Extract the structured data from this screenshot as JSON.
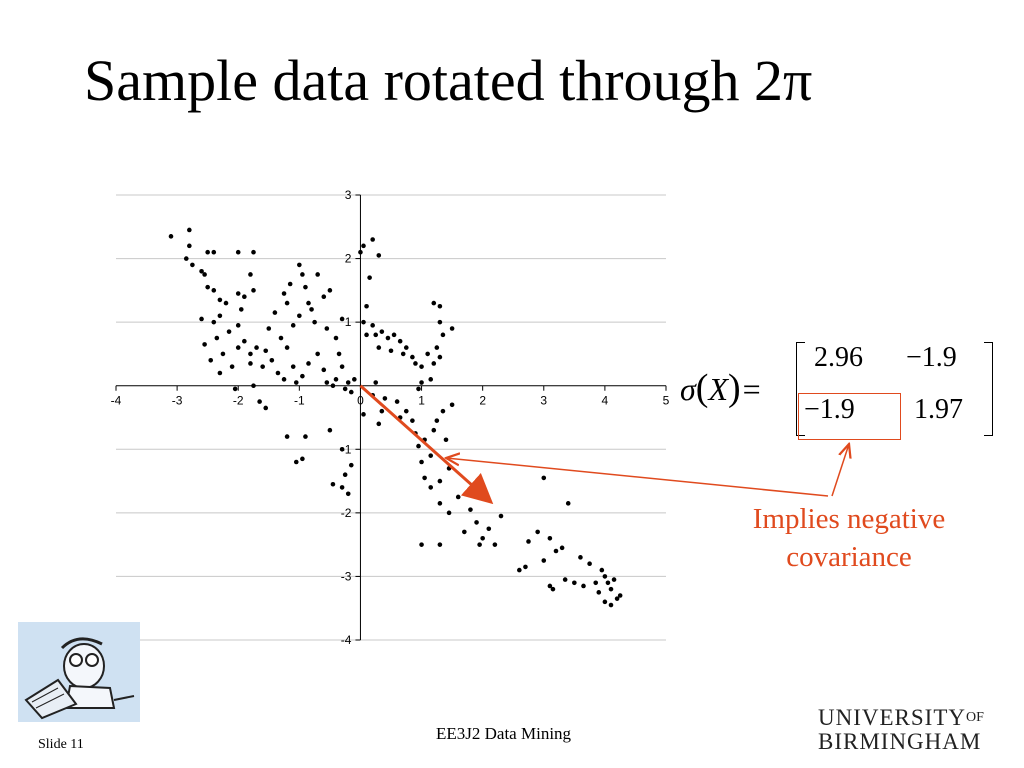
{
  "slide": {
    "title": "Sample data rotated through 2π",
    "slide_number": "Slide 11",
    "footer_title": "EE3J2 Data Mining"
  },
  "matrix": {
    "lhs_sigma": "σ",
    "lhs_var": "X",
    "a11": "2.96",
    "a12": "−1.9",
    "a21": "−1.9",
    "a22": "1.97"
  },
  "annotation": {
    "line1": "Implies negative",
    "line2": "covariance",
    "color": "#e04a1e"
  },
  "university": {
    "line1": "UNIVERSITY",
    "of": "OF",
    "line2": "BIRMINGHAM"
  },
  "chart_data": {
    "type": "scatter",
    "xlim": [
      -4,
      5
    ],
    "ylim": [
      -4,
      3
    ],
    "x_ticks": [
      -4,
      -3,
      -2,
      -1,
      0,
      1,
      2,
      3,
      4,
      5
    ],
    "y_ticks": [
      3,
      2,
      1,
      -1,
      -2,
      -3,
      -4
    ],
    "grid": "horizontal",
    "axes_through_origin": true,
    "arrow": {
      "from": [
        0,
        0
      ],
      "to": [
        2.1,
        -1.8
      ],
      "color": "#e04a1e"
    },
    "points": [
      [
        -3.1,
        2.35
      ],
      [
        -2.8,
        2.45
      ],
      [
        -2.8,
        2.2
      ],
      [
        -2.85,
        2.0
      ],
      [
        -2.75,
        1.9
      ],
      [
        -2.5,
        2.1
      ],
      [
        -2.4,
        2.1
      ],
      [
        -2.55,
        1.75
      ],
      [
        -2.5,
        1.55
      ],
      [
        -2.4,
        1.5
      ],
      [
        -2.6,
        1.8
      ],
      [
        -2.3,
        1.35
      ],
      [
        -2.2,
        1.3
      ],
      [
        -2.0,
        1.45
      ],
      [
        -1.9,
        1.4
      ],
      [
        -2.4,
        1.0
      ],
      [
        -2.3,
        1.1
      ],
      [
        -2.15,
        0.85
      ],
      [
        -2.0,
        0.95
      ],
      [
        -1.95,
        1.2
      ],
      [
        -2.6,
        1.05
      ],
      [
        -2.35,
        0.75
      ],
      [
        -2.25,
        0.5
      ],
      [
        -2.0,
        0.6
      ],
      [
        -2.1,
        0.3
      ],
      [
        -1.9,
        0.7
      ],
      [
        -1.8,
        0.5
      ],
      [
        -1.7,
        0.6
      ],
      [
        -1.55,
        0.55
      ],
      [
        -1.5,
        0.9
      ],
      [
        -1.6,
        0.3
      ],
      [
        -1.8,
        0.35
      ],
      [
        -1.45,
        0.4
      ],
      [
        -1.35,
        0.2
      ],
      [
        -1.2,
        0.6
      ],
      [
        -1.1,
        0.3
      ],
      [
        -1.25,
        0.1
      ],
      [
        -1.05,
        0.05
      ],
      [
        -0.95,
        0.15
      ],
      [
        -0.85,
        0.35
      ],
      [
        -0.7,
        0.5
      ],
      [
        -0.6,
        0.25
      ],
      [
        -0.55,
        0.05
      ],
      [
        -0.4,
        0.1
      ],
      [
        -0.3,
        0.3
      ],
      [
        -0.2,
        0.05
      ],
      [
        -0.1,
        0.1
      ],
      [
        -0.25,
        -0.05
      ],
      [
        -0.45,
        0.0
      ],
      [
        -0.15,
        -0.1
      ],
      [
        -2.55,
        0.65
      ],
      [
        -2.45,
        0.4
      ],
      [
        -2.3,
        0.2
      ],
      [
        -2.05,
        -0.05
      ],
      [
        -1.75,
        0.0
      ],
      [
        -1.65,
        -0.25
      ],
      [
        -1.55,
        -0.35
      ],
      [
        -1.3,
        0.75
      ],
      [
        -1.15,
        1.6
      ],
      [
        -1.0,
        1.9
      ],
      [
        -0.95,
        1.75
      ],
      [
        -0.9,
        1.55
      ],
      [
        -0.85,
        1.3
      ],
      [
        -0.8,
        1.2
      ],
      [
        -0.75,
        1.0
      ],
      [
        -1.0,
        1.1
      ],
      [
        -0.7,
        1.75
      ],
      [
        -0.6,
        1.4
      ],
      [
        -0.55,
        0.9
      ],
      [
        -0.5,
        1.5
      ],
      [
        -0.4,
        0.75
      ],
      [
        -0.35,
        0.5
      ],
      [
        -1.2,
        1.3
      ],
      [
        -1.4,
        1.15
      ],
      [
        -1.1,
        0.95
      ],
      [
        -1.75,
        2.1
      ],
      [
        -1.8,
        1.75
      ],
      [
        -1.75,
        1.5
      ],
      [
        -2.0,
        2.1
      ],
      [
        -1.25,
        1.45
      ],
      [
        -0.3,
        1.05
      ],
      [
        0.0,
        2.1
      ],
      [
        0.05,
        2.2
      ],
      [
        0.2,
        2.3
      ],
      [
        0.3,
        2.05
      ],
      [
        0.15,
        1.7
      ],
      [
        0.1,
        1.25
      ],
      [
        0.05,
        1.0
      ],
      [
        0.1,
        0.8
      ],
      [
        0.2,
        0.95
      ],
      [
        0.25,
        0.8
      ],
      [
        0.3,
        0.6
      ],
      [
        0.35,
        0.85
      ],
      [
        0.45,
        0.75
      ],
      [
        0.5,
        0.55
      ],
      [
        0.55,
        0.8
      ],
      [
        0.65,
        0.7
      ],
      [
        0.7,
        0.5
      ],
      [
        0.75,
        0.6
      ],
      [
        0.85,
        0.45
      ],
      [
        0.9,
        0.35
      ],
      [
        1.0,
        0.3
      ],
      [
        1.1,
        0.5
      ],
      [
        1.2,
        0.35
      ],
      [
        1.3,
        0.45
      ],
      [
        1.2,
        1.3
      ],
      [
        1.3,
        1.25
      ],
      [
        1.3,
        1.0
      ],
      [
        1.35,
        0.8
      ],
      [
        1.5,
        0.9
      ],
      [
        1.25,
        0.6
      ],
      [
        1.0,
        0.05
      ],
      [
        1.15,
        0.1
      ],
      [
        0.95,
        -0.05
      ],
      [
        0.25,
        0.05
      ],
      [
        0.2,
        -0.15
      ],
      [
        0.4,
        -0.2
      ],
      [
        0.35,
        -0.4
      ],
      [
        0.6,
        -0.25
      ],
      [
        0.75,
        -0.4
      ],
      [
        0.85,
        -0.55
      ],
      [
        0.9,
        -0.75
      ],
      [
        0.95,
        -0.95
      ],
      [
        1.05,
        -0.85
      ],
      [
        1.2,
        -0.7
      ],
      [
        1.25,
        -0.55
      ],
      [
        1.35,
        -0.4
      ],
      [
        1.5,
        -0.3
      ],
      [
        1.4,
        -0.85
      ],
      [
        1.15,
        -1.1
      ],
      [
        1.0,
        -1.2
      ],
      [
        1.05,
        -1.45
      ],
      [
        1.15,
        -1.6
      ],
      [
        1.3,
        -1.5
      ],
      [
        1.45,
        -1.3
      ],
      [
        1.3,
        -1.85
      ],
      [
        1.45,
        -2.0
      ],
      [
        1.6,
        -1.75
      ],
      [
        1.7,
        -2.3
      ],
      [
        1.8,
        -1.95
      ],
      [
        1.9,
        -2.15
      ],
      [
        2.0,
        -2.4
      ],
      [
        2.1,
        -2.25
      ],
      [
        1.95,
        -2.5
      ],
      [
        2.2,
        -2.5
      ],
      [
        1.0,
        -2.5
      ],
      [
        2.3,
        -2.05
      ],
      [
        2.6,
        -2.9
      ],
      [
        2.7,
        -2.85
      ],
      [
        2.75,
        -2.45
      ],
      [
        2.9,
        -2.3
      ],
      [
        3.0,
        -2.75
      ],
      [
        3.1,
        -2.4
      ],
      [
        3.2,
        -2.6
      ],
      [
        3.3,
        -2.55
      ],
      [
        3.0,
        -1.45
      ],
      [
        3.4,
        -1.85
      ],
      [
        3.1,
        -3.15
      ],
      [
        3.15,
        -3.2
      ],
      [
        3.35,
        -3.05
      ],
      [
        3.5,
        -3.1
      ],
      [
        3.65,
        -3.15
      ],
      [
        3.75,
        -2.8
      ],
      [
        3.95,
        -2.9
      ],
      [
        4.0,
        -3.0
      ],
      [
        4.05,
        -3.1
      ],
      [
        4.1,
        -3.2
      ],
      [
        4.15,
        -3.05
      ],
      [
        4.0,
        -3.4
      ],
      [
        4.2,
        -3.35
      ],
      [
        4.1,
        -3.45
      ],
      [
        3.9,
        -3.25
      ],
      [
        3.6,
        -2.7
      ],
      [
        3.85,
        -3.1
      ],
      [
        4.25,
        -3.3
      ],
      [
        -0.9,
        -0.8
      ],
      [
        -1.2,
        -0.8
      ],
      [
        -0.95,
        -1.15
      ],
      [
        -1.05,
        -1.2
      ],
      [
        -0.5,
        -0.7
      ],
      [
        -0.3,
        -1.0
      ],
      [
        -0.25,
        -1.4
      ],
      [
        -0.45,
        -1.55
      ],
      [
        -0.3,
        -1.6
      ],
      [
        -0.2,
        -1.7
      ],
      [
        -0.15,
        -1.25
      ],
      [
        0.05,
        -0.45
      ],
      [
        0.3,
        -0.6
      ],
      [
        0.65,
        -0.5
      ],
      [
        1.3,
        -2.5
      ]
    ]
  }
}
